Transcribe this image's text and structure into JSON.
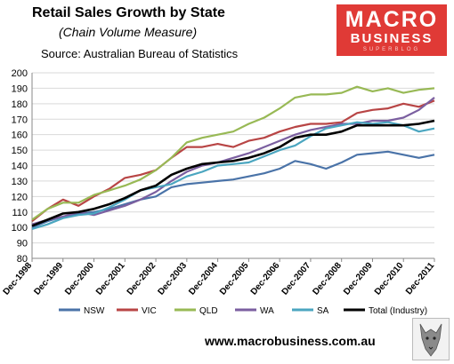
{
  "header": {
    "title": "Retail Sales Growth by State",
    "subtitle": "(Chain Volume Measure)",
    "source": "Source: Australian Bureau of Statistics"
  },
  "logo": {
    "line1": "MACRO",
    "line2": "BUSINESS",
    "line3": "SUPERBLOG"
  },
  "footer": {
    "url": "www.macrobusiness.com.au"
  },
  "colors": {
    "NSW": "#4a73a8",
    "VIC": "#b84545",
    "QLD": "#98b955",
    "WA": "#7b5fa0",
    "SA": "#4ba6c0",
    "Total (Industry)": "#000000",
    "logo": "#e03a36"
  },
  "chart_data": {
    "type": "line",
    "title": "Retail Sales Growth by State",
    "xlabel": "",
    "ylabel": "",
    "ylim": [
      80,
      200
    ],
    "yticks": [
      80,
      90,
      100,
      110,
      120,
      130,
      140,
      150,
      160,
      170,
      180,
      190,
      200
    ],
    "xlim": [
      "Dec-1998",
      "Dec-2011"
    ],
    "xticks": [
      "Dec-1998",
      "Dec-1999",
      "Dec-2000",
      "Dec-2001",
      "Dec-2002",
      "Dec-2003",
      "Dec-2004",
      "Dec-2005",
      "Dec-2006",
      "Dec-2007",
      "Dec-2008",
      "Dec-2009",
      "Dec-2010",
      "Dec-2011"
    ],
    "grid": true,
    "legend": "bottom",
    "series": [
      {
        "name": "NSW",
        "values": [
          [
            "Dec-1998",
            100
          ],
          [
            "Jun-1999",
            104
          ],
          [
            "Dec-1999",
            107
          ],
          [
            "Jun-2000",
            109
          ],
          [
            "Dec-2000",
            110
          ],
          [
            "Jun-2001",
            112
          ],
          [
            "Dec-2001",
            115
          ],
          [
            "Jun-2002",
            118
          ],
          [
            "Dec-2002",
            120
          ],
          [
            "Jun-2003",
            126
          ],
          [
            "Dec-2003",
            128
          ],
          [
            "Jun-2004",
            129
          ],
          [
            "Dec-2004",
            130
          ],
          [
            "Jun-2005",
            131
          ],
          [
            "Dec-2005",
            133
          ],
          [
            "Jun-2006",
            135
          ],
          [
            "Dec-2006",
            138
          ],
          [
            "Jun-2007",
            143
          ],
          [
            "Dec-2007",
            141
          ],
          [
            "Jun-2008",
            138
          ],
          [
            "Dec-2008",
            142
          ],
          [
            "Jun-2009",
            147
          ],
          [
            "Dec-2009",
            148
          ],
          [
            "Jun-2010",
            149
          ],
          [
            "Dec-2010",
            147
          ],
          [
            "Jun-2011",
            145
          ],
          [
            "Dec-2011",
            147
          ]
        ]
      },
      {
        "name": "VIC",
        "values": [
          [
            "Dec-1998",
            104
          ],
          [
            "Jun-1999",
            112
          ],
          [
            "Dec-1999",
            118
          ],
          [
            "Jun-2000",
            114
          ],
          [
            "Dec-2000",
            120
          ],
          [
            "Jun-2001",
            125
          ],
          [
            "Dec-2001",
            132
          ],
          [
            "Jun-2002",
            134
          ],
          [
            "Dec-2002",
            137
          ],
          [
            "Jun-2003",
            145
          ],
          [
            "Dec-2003",
            152
          ],
          [
            "Jun-2004",
            152
          ],
          [
            "Dec-2004",
            154
          ],
          [
            "Jun-2005",
            152
          ],
          [
            "Dec-2005",
            156
          ],
          [
            "Jun-2006",
            158
          ],
          [
            "Dec-2006",
            162
          ],
          [
            "Jun-2007",
            165
          ],
          [
            "Dec-2007",
            167
          ],
          [
            "Jun-2008",
            167
          ],
          [
            "Dec-2008",
            168
          ],
          [
            "Jun-2009",
            174
          ],
          [
            "Dec-2009",
            176
          ],
          [
            "Jun-2010",
            177
          ],
          [
            "Dec-2010",
            180
          ],
          [
            "Jun-2011",
            178
          ],
          [
            "Dec-2011",
            182
          ]
        ]
      },
      {
        "name": "QLD",
        "values": [
          [
            "Dec-1998",
            105
          ],
          [
            "Jun-1999",
            112
          ],
          [
            "Dec-1999",
            116
          ],
          [
            "Jun-2000",
            116
          ],
          [
            "Dec-2000",
            121
          ],
          [
            "Jun-2001",
            124
          ],
          [
            "Dec-2001",
            127
          ],
          [
            "Jun-2002",
            131
          ],
          [
            "Dec-2002",
            137
          ],
          [
            "Jun-2003",
            145
          ],
          [
            "Dec-2003",
            155
          ],
          [
            "Jun-2004",
            158
          ],
          [
            "Dec-2004",
            160
          ],
          [
            "Jun-2005",
            162
          ],
          [
            "Dec-2005",
            167
          ],
          [
            "Jun-2006",
            171
          ],
          [
            "Dec-2006",
            177
          ],
          [
            "Jun-2007",
            184
          ],
          [
            "Dec-2007",
            186
          ],
          [
            "Jun-2008",
            186
          ],
          [
            "Dec-2008",
            187
          ],
          [
            "Jun-2009",
            191
          ],
          [
            "Dec-2009",
            188
          ],
          [
            "Jun-2010",
            190
          ],
          [
            "Dec-2010",
            187
          ],
          [
            "Jun-2011",
            189
          ],
          [
            "Dec-2011",
            190
          ]
        ]
      },
      {
        "name": "WA",
        "values": [
          [
            "Dec-1998",
            102
          ],
          [
            "Jun-1999",
            105
          ],
          [
            "Dec-1999",
            107
          ],
          [
            "Jun-2000",
            110
          ],
          [
            "Dec-2000",
            108
          ],
          [
            "Jun-2001",
            111
          ],
          [
            "Dec-2001",
            114
          ],
          [
            "Jun-2002",
            118
          ],
          [
            "Dec-2002",
            123
          ],
          [
            "Jun-2003",
            130
          ],
          [
            "Dec-2003",
            136
          ],
          [
            "Jun-2004",
            140
          ],
          [
            "Dec-2004",
            142
          ],
          [
            "Jun-2005",
            145
          ],
          [
            "Dec-2005",
            148
          ],
          [
            "Jun-2006",
            152
          ],
          [
            "Dec-2006",
            156
          ],
          [
            "Jun-2007",
            160
          ],
          [
            "Dec-2007",
            163
          ],
          [
            "Jun-2008",
            165
          ],
          [
            "Dec-2008",
            167
          ],
          [
            "Jun-2009",
            167
          ],
          [
            "Dec-2009",
            169
          ],
          [
            "Jun-2010",
            169
          ],
          [
            "Dec-2010",
            171
          ],
          [
            "Jun-2011",
            176
          ],
          [
            "Dec-2011",
            184
          ]
        ]
      },
      {
        "name": "SA",
        "values": [
          [
            "Dec-1998",
            99
          ],
          [
            "Jun-1999",
            102
          ],
          [
            "Dec-1999",
            106
          ],
          [
            "Jun-2000",
            108
          ],
          [
            "Dec-2000",
            109
          ],
          [
            "Jun-2001",
            113
          ],
          [
            "Dec-2001",
            118
          ],
          [
            "Jun-2002",
            124
          ],
          [
            "Dec-2002",
            126
          ],
          [
            "Jun-2003",
            128
          ],
          [
            "Dec-2003",
            133
          ],
          [
            "Jun-2004",
            136
          ],
          [
            "Dec-2004",
            140
          ],
          [
            "Jun-2005",
            141
          ],
          [
            "Dec-2005",
            142
          ],
          [
            "Jun-2006",
            146
          ],
          [
            "Dec-2006",
            150
          ],
          [
            "Jun-2007",
            153
          ],
          [
            "Dec-2007",
            159
          ],
          [
            "Jun-2008",
            164
          ],
          [
            "Dec-2008",
            166
          ],
          [
            "Jun-2009",
            168
          ],
          [
            "Dec-2009",
            167
          ],
          [
            "Jun-2010",
            168
          ],
          [
            "Dec-2010",
            166
          ],
          [
            "Jun-2011",
            162
          ],
          [
            "Dec-2011",
            164
          ]
        ]
      },
      {
        "name": "Total (Industry)",
        "values": [
          [
            "Dec-1998",
            101
          ],
          [
            "Jun-1999",
            105
          ],
          [
            "Dec-1999",
            109
          ],
          [
            "Jun-2000",
            110
          ],
          [
            "Dec-2000",
            112
          ],
          [
            "Jun-2001",
            115
          ],
          [
            "Dec-2001",
            119
          ],
          [
            "Jun-2002",
            124
          ],
          [
            "Dec-2002",
            127
          ],
          [
            "Jun-2003",
            134
          ],
          [
            "Dec-2003",
            138
          ],
          [
            "Jun-2004",
            141
          ],
          [
            "Dec-2004",
            142
          ],
          [
            "Jun-2005",
            143
          ],
          [
            "Dec-2005",
            145
          ],
          [
            "Jun-2006",
            148
          ],
          [
            "Dec-2006",
            152
          ],
          [
            "Jun-2007",
            158
          ],
          [
            "Dec-2007",
            160
          ],
          [
            "Jun-2008",
            160
          ],
          [
            "Dec-2008",
            162
          ],
          [
            "Jun-2009",
            166
          ],
          [
            "Dec-2009",
            166
          ],
          [
            "Jun-2010",
            166
          ],
          [
            "Dec-2010",
            166
          ],
          [
            "Jun-2011",
            167
          ],
          [
            "Dec-2011",
            169
          ]
        ]
      }
    ]
  }
}
